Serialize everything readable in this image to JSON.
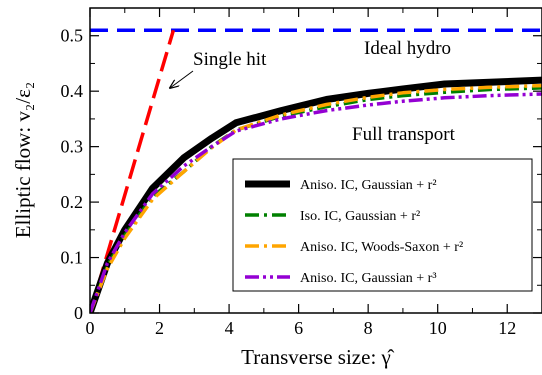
{
  "chart_data": {
    "type": "line",
    "xlabel": "Transverse size: γ̂",
    "ylabel": "Elliptic flow: v₂/ε₂",
    "xlim": [
      0,
      13
    ],
    "ylim": [
      0,
      0.55
    ],
    "x_ticks": [
      0,
      2,
      4,
      6,
      8,
      10,
      12
    ],
    "y_ticks": [
      0,
      0.1,
      0.2,
      0.3,
      0.4,
      0.5
    ],
    "x_tick_labels": [
      "0",
      "2",
      "4",
      "6",
      "8",
      "10",
      "12"
    ],
    "y_tick_labels": [
      "0",
      "0.1",
      "0.2",
      "0.3",
      "0.4",
      "0.5"
    ],
    "grid": false,
    "legend_position": "center-right",
    "annotations": {
      "ideal_hydro": "Ideal hydro",
      "single_hit": "Single hit",
      "full_transport": "Full transport"
    },
    "reference_lines": [
      {
        "label": "Ideal hydro",
        "type": "horizontal",
        "y": 0.51,
        "color": "#0000ff",
        "style": "dashed"
      },
      {
        "label": "Single hit",
        "type": "line",
        "x": [
          0,
          2.4
        ],
        "y": [
          0,
          0.51
        ],
        "color": "#ff0000",
        "style": "dashed"
      }
    ],
    "series": [
      {
        "name": "Aniso. IC, Gaussian + r²",
        "color": "#000000",
        "style": "solid",
        "x": [
          0,
          0.5,
          1,
          1.8,
          2.7,
          3.5,
          4.2,
          5.5,
          6.8,
          8,
          9,
          10.2,
          11.5,
          13
        ],
        "y": [
          0,
          0.09,
          0.15,
          0.225,
          0.28,
          0.315,
          0.343,
          0.365,
          0.385,
          0.396,
          0.404,
          0.413,
          0.416,
          0.42
        ]
      },
      {
        "name": "Iso. IC, Gaussian + r²",
        "color": "#008000",
        "style": "dashdot",
        "x": [
          0,
          0.5,
          1,
          1.8,
          2.7,
          3.5,
          4.2,
          5.5,
          6.8,
          8,
          9,
          10.2,
          11.5,
          13
        ],
        "y": [
          0,
          0.085,
          0.14,
          0.21,
          0.255,
          0.3,
          0.33,
          0.355,
          0.372,
          0.385,
          0.392,
          0.398,
          0.403,
          0.406
        ]
      },
      {
        "name": "Aniso. IC, Woods-Saxon + r²",
        "color": "#ffa500",
        "style": "dashdot",
        "x": [
          0,
          0.5,
          1,
          1.8,
          2.7,
          3.5,
          4.2,
          5.5,
          6.8,
          8,
          9,
          10.2,
          11.5,
          13
        ],
        "y": [
          0,
          0.08,
          0.135,
          0.205,
          0.255,
          0.298,
          0.33,
          0.357,
          0.376,
          0.389,
          0.397,
          0.403,
          0.407,
          0.41
        ]
      },
      {
        "name": "Aniso. IC, Gaussian + r³",
        "color": "#9400d3",
        "style": "dashdotdot",
        "x": [
          0,
          0.5,
          1,
          1.8,
          2.7,
          3.5,
          4.2,
          5.5,
          6.8,
          8,
          9,
          10.2,
          11.5,
          13
        ],
        "y": [
          0,
          0.09,
          0.145,
          0.215,
          0.265,
          0.3,
          0.328,
          0.35,
          0.365,
          0.375,
          0.382,
          0.388,
          0.392,
          0.395
        ]
      }
    ]
  }
}
